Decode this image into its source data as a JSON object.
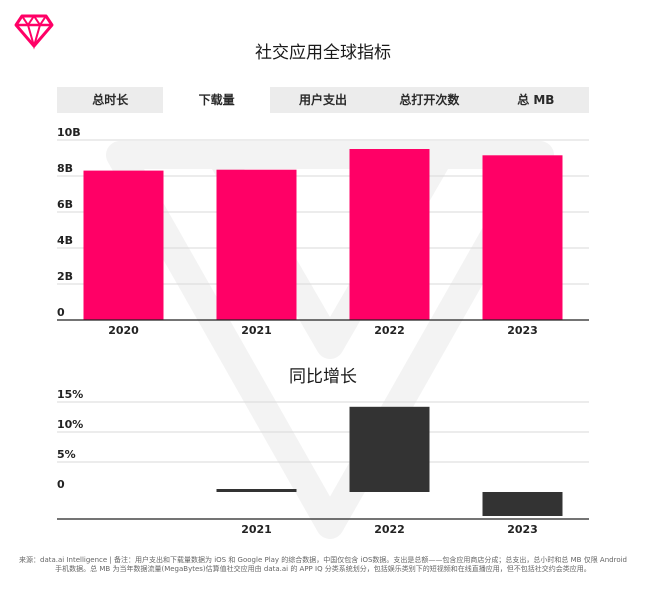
{
  "title": "社交应用全球指标",
  "tabs": [
    {
      "label": "总时长",
      "active": false
    },
    {
      "label": "下载量",
      "active": true
    },
    {
      "label": "用户支出",
      "active": false
    },
    {
      "label": "总打开次数",
      "active": false
    },
    {
      "label": "总 MB",
      "active": false
    }
  ],
  "footnote": "来源：data.ai Intelligence | 备注：用户支出和下载量数据为 iOS 和 Google Play 的综合数据，中国仅包含 iOS数据。支出是总额——包含应用商店分成；总支出，总小时和总 MB 仅限 Android 手机数据。总 MB 为当年数据流量(MegaBytes)估算值社交应用由 data.ai 的 APP IQ 分类系统划分，包括娱乐类别下的短视频和在线直播应用，但不包括社交约会类应用。",
  "colors": {
    "accent": "#FF0066",
    "growth_bar": "#333333",
    "tab_bg": "#ECECEC",
    "gridline": "#D9D9D9"
  },
  "chart_data": [
    {
      "type": "bar",
      "title": "社交应用全球指标",
      "categories": [
        "2020",
        "2021",
        "2022",
        "2023"
      ],
      "values": [
        8.3,
        8.35,
        9.5,
        9.15
      ],
      "y_ticks": [
        "0",
        "2B",
        "4B",
        "6B",
        "8B",
        "10B"
      ],
      "ylim": [
        0,
        10
      ],
      "unit": "B",
      "grid": true,
      "color": "#FF0066"
    },
    {
      "type": "bar",
      "title": "同比增长",
      "categories": [
        "2021",
        "2022",
        "2023"
      ],
      "values": [
        0.5,
        14.2,
        -4
      ],
      "y_ticks": [
        "0",
        "5%",
        "10%",
        "15%"
      ],
      "ylim": [
        -5,
        15
      ],
      "unit": "%",
      "grid": true,
      "color": "#333333"
    }
  ]
}
